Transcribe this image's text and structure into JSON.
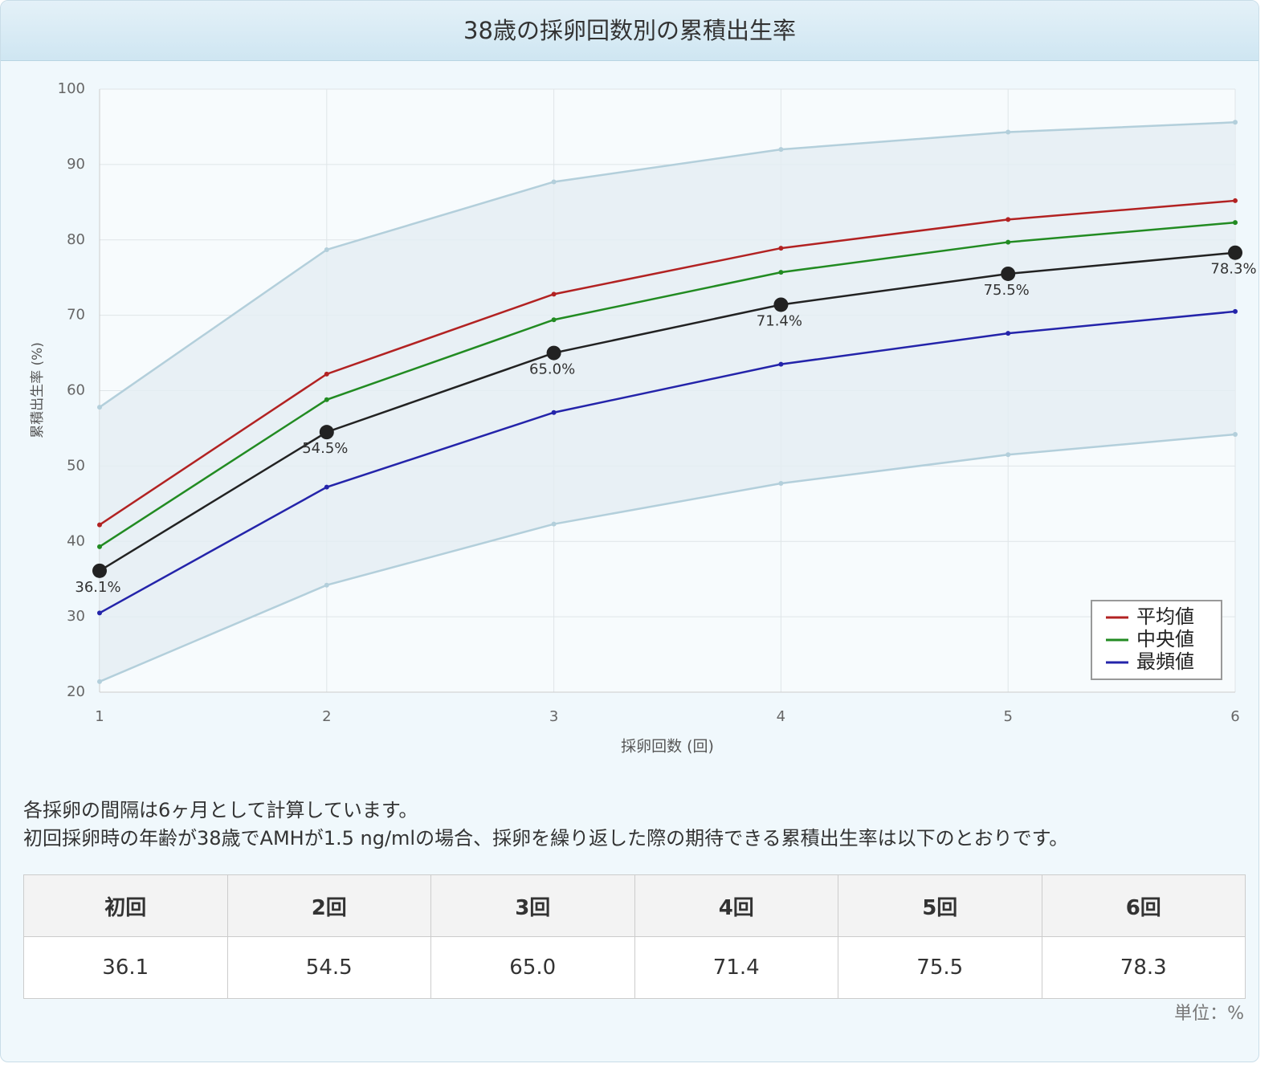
{
  "header": {
    "title": "38歳の採卵回数別の累積出生率"
  },
  "chart_data": {
    "type": "line",
    "x": [
      1,
      2,
      3,
      4,
      5,
      6
    ],
    "xlim": [
      1,
      6
    ],
    "xticks": [
      1,
      2,
      3,
      4,
      5,
      6
    ],
    "ylim": [
      20,
      100
    ],
    "yticks": [
      20,
      30,
      40,
      50,
      60,
      70,
      80,
      90,
      100
    ],
    "xlabel": "採卵回数 (回)",
    "ylabel": "累積出生率 (%)",
    "grid": true,
    "legend": "bottom-right",
    "fill_between": [
      0,
      1
    ],
    "fill_color": "#e3edf3",
    "series": [
      {
        "color": "#b3cfdb",
        "values": [
          57.8,
          78.7,
          87.7,
          92.0,
          94.3,
          95.6
        ]
      },
      {
        "color": "#b3cfdb",
        "values": [
          21.4,
          34.2,
          42.3,
          47.7,
          51.5,
          54.2
        ]
      },
      {
        "name": "平均値",
        "color": "#b22222",
        "values": [
          42.2,
          62.2,
          72.8,
          78.9,
          82.7,
          85.2
        ]
      },
      {
        "name": "中央値",
        "color": "#228b22",
        "values": [
          39.3,
          58.8,
          69.4,
          75.7,
          79.7,
          82.3
        ]
      },
      {
        "name": "最頻値",
        "color": "#2424aa",
        "values": [
          30.5,
          47.2,
          57.1,
          63.5,
          67.6,
          70.5
        ]
      },
      {
        "color": "#222222",
        "values": [
          36.1,
          54.5,
          65.0,
          71.4,
          75.5,
          78.3
        ],
        "value_labels": [
          "36.1%",
          "54.5%",
          "65.0%",
          "71.4%",
          "75.5%",
          "78.3%"
        ]
      }
    ]
  },
  "notes": [
    "各採卵の間隔は6ヶ月として計算しています。",
    "初回採卵時の年齢が38歳でAMHが1.5 ng/mlの場合、採卵を繰り返した際の期待できる累積出生率は以下のとおりです。"
  ],
  "table": {
    "header": [
      "初回",
      "2回",
      "3回",
      "4回",
      "5回",
      "6回"
    ],
    "rows": [
      [
        "36.1",
        "54.5",
        "65.0",
        "71.4",
        "75.5",
        "78.3"
      ]
    ]
  },
  "unit_note": "単位：%"
}
